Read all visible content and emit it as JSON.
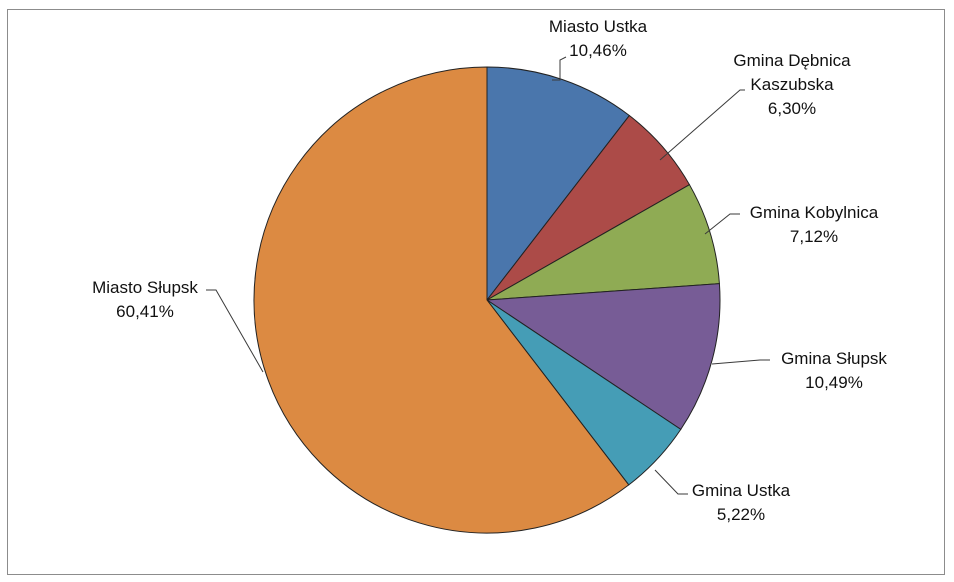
{
  "chart_data": {
    "type": "pie",
    "title": "",
    "legend": "none",
    "slices": [
      {
        "label": "Miasto Ustka",
        "value": 10.46,
        "value_label": "10,46%",
        "color": "#4a76ac"
      },
      {
        "label": "Gmina Dębnica Kaszubska",
        "label_lines": [
          "Gmina Dębnica",
          "Kaszubska"
        ],
        "value": 6.3,
        "value_label": "6,30%",
        "color": "#ac4b48"
      },
      {
        "label": "Gmina Kobylnica",
        "value": 7.12,
        "value_label": "7,12%",
        "color": "#8fab54"
      },
      {
        "label": "Gmina Słupsk",
        "value": 10.49,
        "value_label": "10,49%",
        "color": "#775c96"
      },
      {
        "label": "Gmina Ustka",
        "value": 5.22,
        "value_label": "5,22%",
        "color": "#459db6"
      },
      {
        "label": "Miasto Słupsk",
        "value": 60.41,
        "value_label": "60,41%",
        "color": "#dc8a42"
      }
    ]
  }
}
